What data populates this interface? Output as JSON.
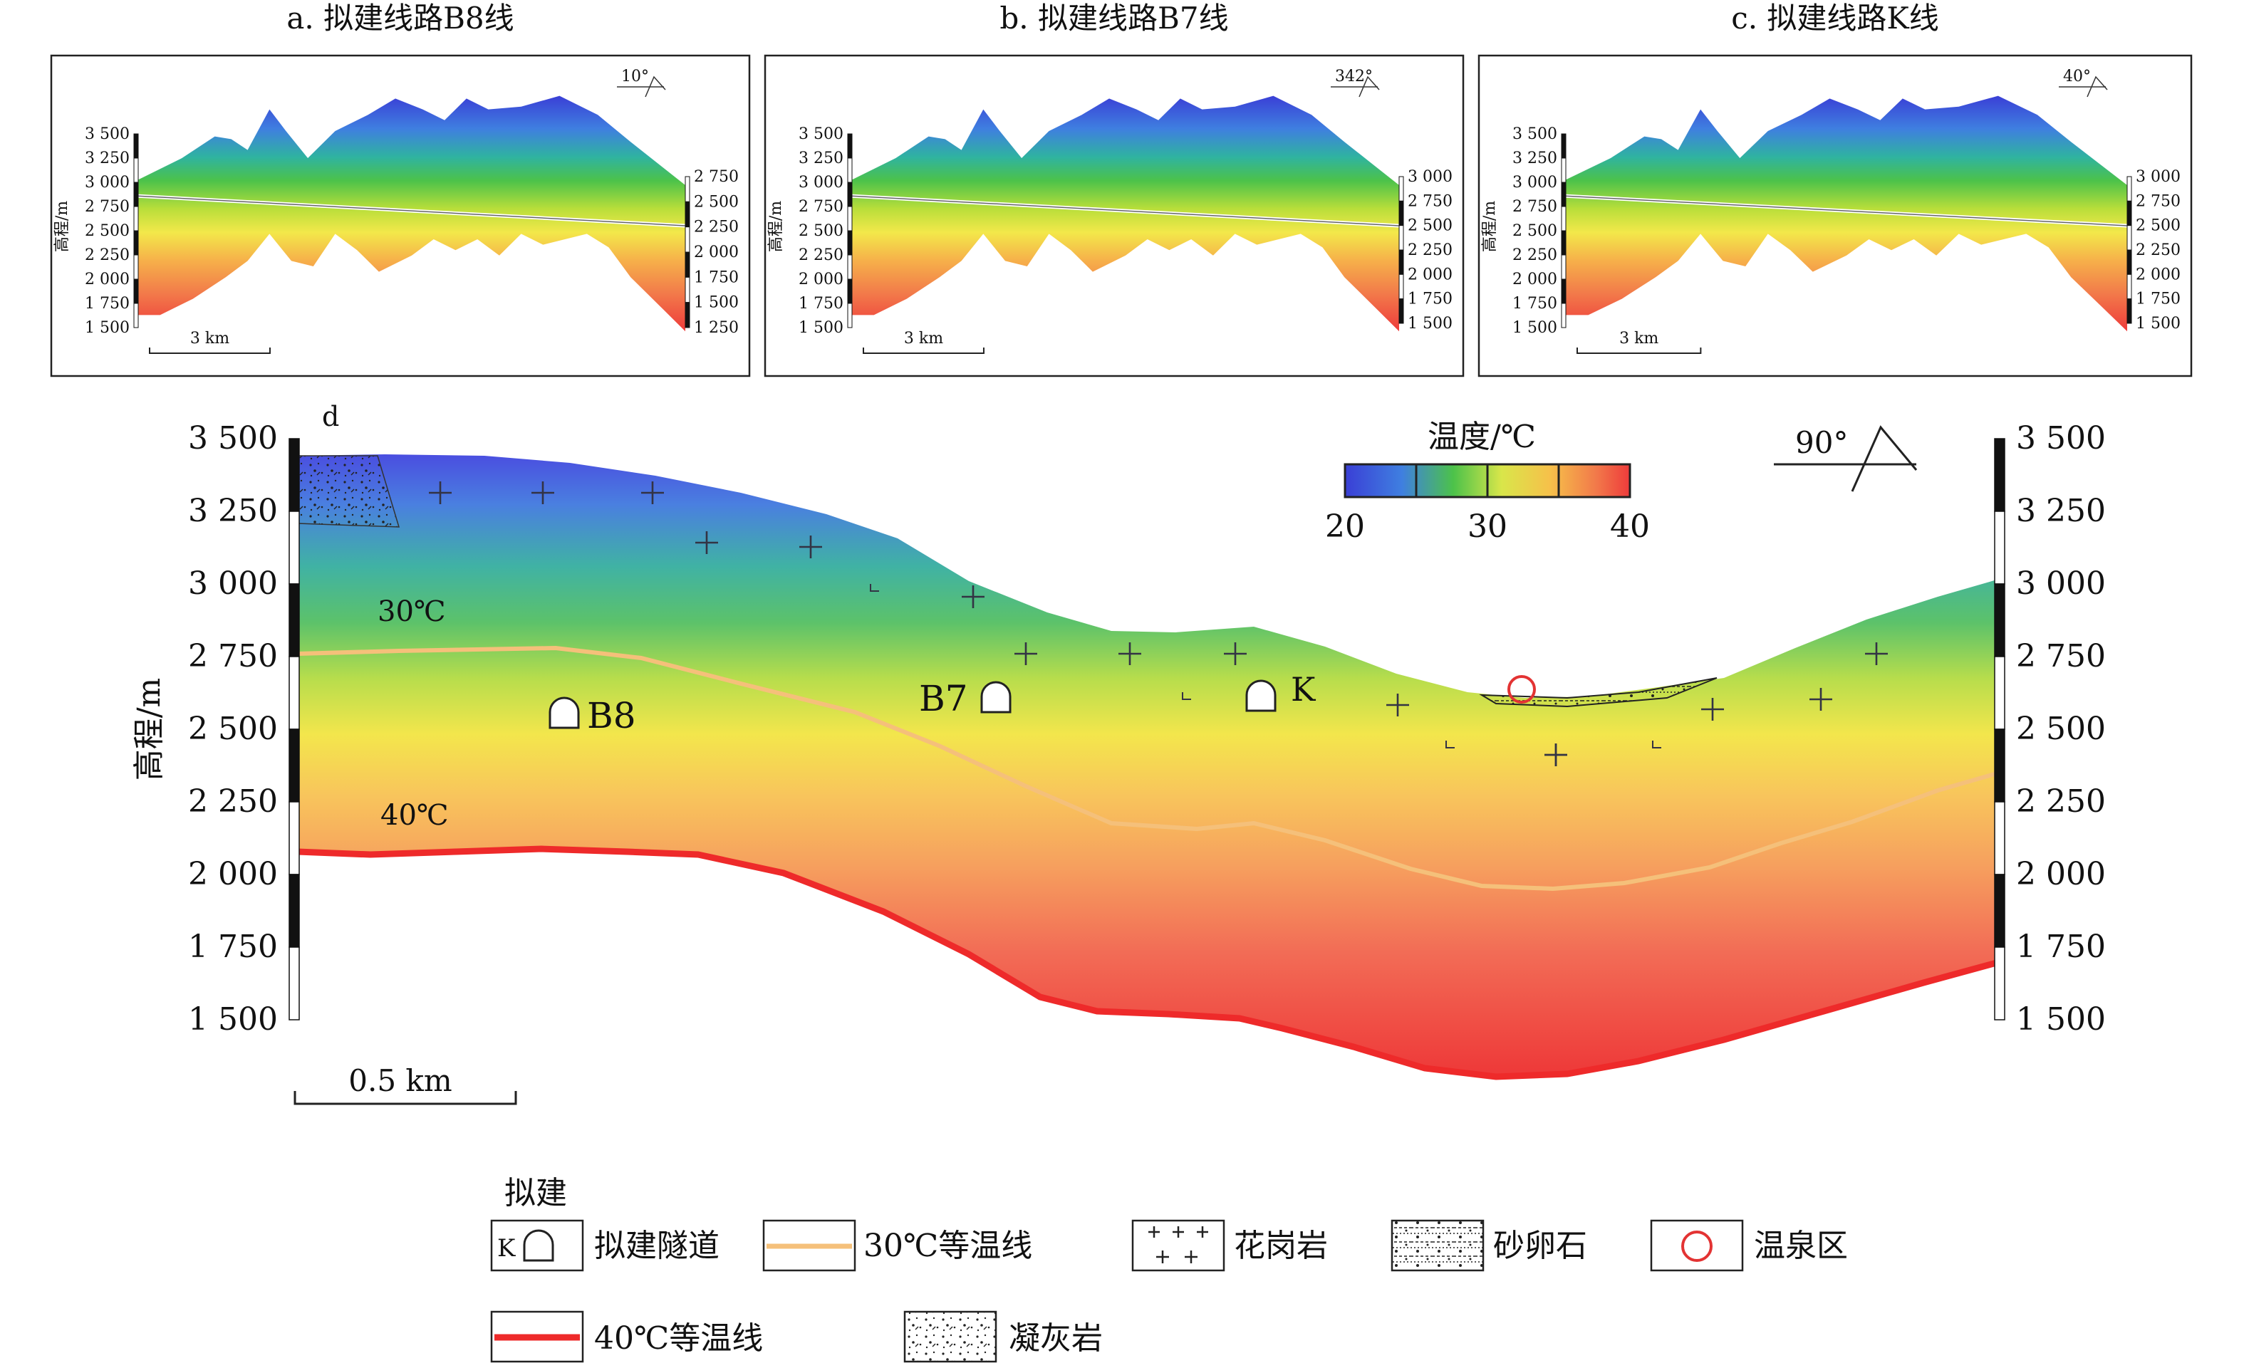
{
  "colors": {
    "ramp": [
      "#3a3fd6",
      "#3f7fe0",
      "#2fb3a0",
      "#4cc24a",
      "#b9de3a",
      "#f3e84a",
      "#f6b04a",
      "#f27a4a",
      "#ee3b3b"
    ],
    "isotherm_30": "#f5c07a",
    "isotherm_40": "#ee2a2a",
    "frame": "#111111",
    "hot_spring": "#e33333"
  },
  "panels": [
    {
      "title": "a. 拟建线路B8线",
      "orientation": "10°",
      "left_ticks": [
        "3 500",
        "3 250",
        "3 000",
        "2 750",
        "2 500",
        "2 250",
        "2 000",
        "1 750",
        "1 500"
      ],
      "right_ticks": [
        "2 750",
        "2 500",
        "2 250",
        "2 000",
        "1 750",
        "1 500",
        "1 250"
      ],
      "ylabel": "高程/m",
      "scale": "3 km"
    },
    {
      "title": "b. 拟建线路B7线",
      "orientation": "342°",
      "left_ticks": [
        "3 500",
        "3 250",
        "3 000",
        "2 750",
        "2 500",
        "2 250",
        "2 000",
        "1 750",
        "1 500"
      ],
      "right_ticks": [
        "3 000",
        "2 750",
        "2 500",
        "2 250",
        "2 000",
        "1 750",
        "1 500"
      ],
      "ylabel": "高程/m",
      "scale": "3 km"
    },
    {
      "title": "c. 拟建线路K线",
      "orientation": "40°",
      "left_ticks": [
        "3 500",
        "3 250",
        "3 000",
        "2 750",
        "2 500",
        "2 250",
        "2 000",
        "1 750",
        "1 500"
      ],
      "right_ticks": [
        "3 000",
        "2 750",
        "2 500",
        "2 250",
        "2 000",
        "1 750",
        "1 500"
      ],
      "ylabel": "高程/m",
      "scale": "3 km"
    }
  ],
  "main": {
    "label": "d",
    "ylabel": "高程/m",
    "ticks": [
      "3 500",
      "3 250",
      "3 000",
      "2 750",
      "2 500",
      "2 250",
      "2 000",
      "1 750",
      "1 500"
    ],
    "orientation": "90°",
    "colorbar": {
      "title": "温度/℃",
      "labels": [
        "20",
        "30",
        "40"
      ]
    },
    "isotherm_labels": [
      "30℃",
      "40℃"
    ],
    "tunnels": [
      "B8",
      "B7",
      "K"
    ],
    "scale": "0.5 km"
  },
  "legend": {
    "heading": "拟建",
    "tunnel_symbol_letter": "K",
    "items": {
      "tunnel": "拟建隧道",
      "iso30": "30℃等温线",
      "granite": "花岗岩",
      "gravel": "砂卵石",
      "hotspring": "温泉区",
      "iso40": "40℃等温线",
      "tuff": "凝灰岩"
    }
  }
}
